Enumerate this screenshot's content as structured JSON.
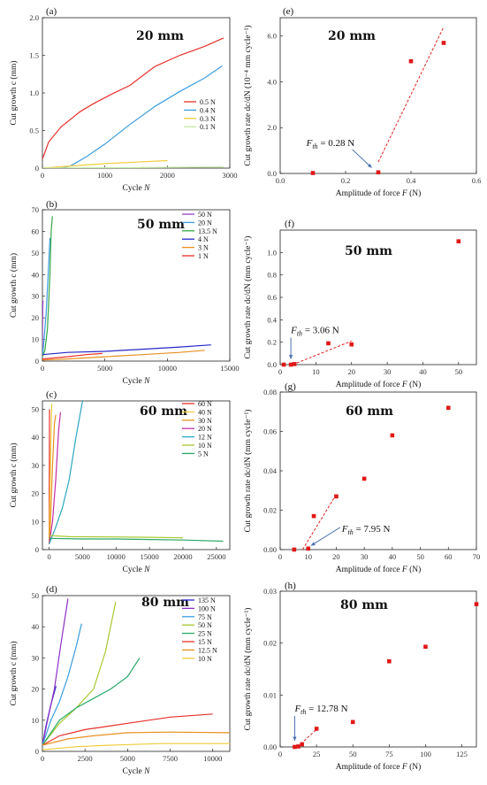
{
  "chart_data": [
    {
      "id": "a",
      "panel_label": "(a)",
      "type": "line",
      "title": "20 mm",
      "xlabel": "Cycle N",
      "ylabel": "Cut growth c (mm)",
      "xlim": [
        0,
        3000
      ],
      "ylim": [
        0,
        2.0
      ],
      "xticks": [
        0,
        1000,
        2000,
        3000
      ],
      "yticks": [
        0,
        0.5,
        1.0,
        1.5,
        2.0
      ],
      "ytick_labels": [
        "0",
        "0.5",
        "1.0",
        "1.5",
        "2.0"
      ],
      "legend": "right",
      "series": [
        {
          "name": "0.5 N",
          "color": "#e8312a",
          "x": [
            0,
            100,
            300,
            600,
            800,
            1100,
            1400,
            1800,
            2200,
            2600,
            2900
          ],
          "y": [
            0.12,
            0.35,
            0.55,
            0.75,
            0.85,
            0.98,
            1.1,
            1.35,
            1.5,
            1.62,
            1.73
          ]
        },
        {
          "name": "0.4 N",
          "color": "#3c9de0",
          "x": [
            0,
            300,
            450,
            700,
            1000,
            1400,
            1800,
            2200,
            2600,
            2880
          ],
          "y": [
            0,
            0,
            0.03,
            0.15,
            0.32,
            0.58,
            0.82,
            1.02,
            1.2,
            1.36
          ]
        },
        {
          "name": "0.3 N",
          "color": "#f0cd3a",
          "x": [
            0,
            500,
            1000,
            1500,
            2000
          ],
          "y": [
            0,
            0.03,
            0.06,
            0.08,
            0.1
          ]
        },
        {
          "name": "0.1 N",
          "color": "#c0e8a0",
          "x": [
            0,
            1000,
            2000,
            2900
          ],
          "y": [
            0,
            0.005,
            0.01,
            0.015
          ]
        }
      ]
    },
    {
      "id": "e",
      "panel_label": "(e)",
      "type": "scatter",
      "title": "20 mm",
      "xlabel": "Amplitude of force F (N)",
      "ylabel": "Cut growth rate dc/dN (10⁻⁴ mm cycle⁻¹)",
      "xlim": [
        0.0,
        0.6
      ],
      "ylim": [
        0,
        6.8
      ],
      "xticks": [
        0.0,
        0.2,
        0.4,
        0.6
      ],
      "xtick_labels": [
        "0.0",
        "0.2",
        "0.4",
        "0.6"
      ],
      "yticks": [
        0,
        2,
        4,
        6
      ],
      "ytick_labels": [
        "0.0",
        "2.0",
        "4.0",
        "6.0"
      ],
      "points": {
        "x": [
          0.1,
          0.3,
          0.4,
          0.5
        ],
        "y": [
          0.02,
          0.05,
          4.9,
          5.7
        ]
      },
      "fit_line": {
        "x": [
          0.3,
          0.5
        ],
        "y": [
          0.5,
          6.4
        ]
      },
      "annotation": {
        "text": "F",
        "sub": "th",
        "value": " = 0.28 N",
        "x": 0.08,
        "y": 1.2,
        "arrow_to": [
          0.28,
          0.25
        ]
      }
    },
    {
      "id": "b",
      "panel_label": "(b)",
      "type": "line",
      "title": "50 mm",
      "xlabel": "Cycle N",
      "ylabel": "Cut growth c (mm)",
      "xlim": [
        0,
        15000
      ],
      "ylim": [
        0,
        70
      ],
      "xticks": [
        0,
        5000,
        10000,
        15000
      ],
      "yticks": [
        0,
        10,
        20,
        30,
        40,
        50,
        60,
        70
      ],
      "legend": "right",
      "series": [
        {
          "name": "50 N",
          "color": "#9c40c8",
          "x": [
            0,
            5,
            10,
            20,
            30,
            40
          ],
          "y": [
            2,
            8,
            14,
            20,
            25,
            28
          ]
        },
        {
          "name": "20 N",
          "color": "#3c9de0",
          "x": [
            0,
            100,
            300,
            500,
            600
          ],
          "y": [
            2,
            8,
            22,
            45,
            57
          ]
        },
        {
          "name": "13.5 N",
          "color": "#33a845",
          "x": [
            0,
            200,
            400,
            600,
            700,
            800
          ],
          "y": [
            2,
            5,
            15,
            40,
            60,
            67
          ]
        },
        {
          "name": "4 N",
          "color": "#2828c8",
          "x": [
            0,
            2000,
            5000,
            8000,
            11000,
            13500
          ],
          "y": [
            3,
            4,
            4.5,
            5.5,
            6.5,
            7.5
          ]
        },
        {
          "name": "3 N",
          "color": "#e89020",
          "x": [
            0,
            2000,
            5000,
            8000,
            11000,
            13000
          ],
          "y": [
            0.5,
            1,
            2,
            3,
            4,
            5
          ]
        },
        {
          "name": "1 N",
          "color": "#e8312a",
          "x": [
            0,
            2000,
            3500,
            4800
          ],
          "y": [
            1,
            2,
            3,
            3.5
          ]
        }
      ]
    },
    {
      "id": "f",
      "panel_label": "(f)",
      "type": "scatter",
      "title": "50 mm",
      "xlabel": "Amplitude of force F (N)",
      "ylabel": "Cut growth rate dc/dN (mm cycle⁻¹)",
      "xlim": [
        0,
        55
      ],
      "ylim": [
        0,
        1.2
      ],
      "xticks": [
        0,
        10,
        20,
        30,
        40,
        50
      ],
      "yticks": [
        0,
        0.2,
        0.4,
        0.6,
        0.8,
        1.0
      ],
      "ytick_labels": [
        "0.0",
        "0.2",
        "0.4",
        "0.6",
        "0.8",
        "1.0"
      ],
      "points": {
        "x": [
          1,
          3,
          4,
          13.5,
          20,
          50
        ],
        "y": [
          0,
          0,
          0.005,
          0.19,
          0.18,
          1.1
        ]
      },
      "fit_line": {
        "x": [
          3.5,
          20
        ],
        "y": [
          0.0,
          0.21
        ]
      },
      "annotation": {
        "text": "F",
        "sub": "th",
        "value": " = 3.06 N",
        "x": 3.0,
        "y": 0.28,
        "arrow_to": [
          3.0,
          0.05
        ]
      }
    },
    {
      "id": "c",
      "panel_label": "(c)",
      "type": "line",
      "title": "60 mm",
      "xlabel": "Cycle N",
      "ylabel": "Cut growth c (mm)",
      "xlim": [
        -1000,
        27000
      ],
      "ylim": [
        0,
        53
      ],
      "xticks": [
        0,
        5000,
        10000,
        15000,
        20000,
        25000
      ],
      "yticks": [
        0,
        10,
        20,
        30,
        40,
        50
      ],
      "legend": "right",
      "series": [
        {
          "name": "60 N",
          "color": "#e8312a",
          "x": [
            0,
            20,
            40,
            60
          ],
          "y": [
            2,
            15,
            35,
            50
          ]
        },
        {
          "name": "40 N",
          "color": "#f0cd3a",
          "x": [
            0,
            100,
            250,
            400
          ],
          "y": [
            2,
            15,
            38,
            52
          ]
        },
        {
          "name": "30 N",
          "color": "#e89020",
          "x": [
            0,
            200,
            500,
            800,
            1000
          ],
          "y": [
            2,
            10,
            30,
            45,
            48
          ]
        },
        {
          "name": "20 N",
          "color": "#c62fa8",
          "x": [
            0,
            500,
            1000,
            1400,
            1700
          ],
          "y": [
            2,
            10,
            25,
            42,
            49
          ]
        },
        {
          "name": "12 N",
          "color": "#2aa8c0",
          "x": [
            0,
            1000,
            2000,
            3000,
            4000,
            5000
          ],
          "y": [
            2,
            8,
            15,
            25,
            40,
            53
          ]
        },
        {
          "name": "10 N",
          "color": "#a8c830",
          "x": [
            0,
            3000,
            10000,
            15000,
            20000
          ],
          "y": [
            5,
            4.6,
            4.5,
            4.4,
            4.2
          ]
        },
        {
          "name": "5 N",
          "color": "#28a868",
          "x": [
            0,
            5000,
            10000,
            15000,
            20000,
            26000
          ],
          "y": [
            4,
            3.8,
            3.8,
            3.6,
            3.4,
            3.0
          ]
        }
      ]
    },
    {
      "id": "g",
      "panel_label": "(g)",
      "type": "scatter",
      "title": "60 mm",
      "xlabel": "Amplitude of force F (N)",
      "ylabel": "Cut growth rate dc/dN (mm cycle⁻¹)",
      "xlim": [
        0,
        70
      ],
      "ylim": [
        0,
        0.08
      ],
      "xticks": [
        0,
        10,
        20,
        30,
        40,
        50,
        60,
        70
      ],
      "yticks": [
        0,
        0.02,
        0.04,
        0.06,
        0.08
      ],
      "ytick_labels": [
        "0.00",
        "0.02",
        "0.04",
        "0.06",
        "0.08"
      ],
      "points": {
        "x": [
          5,
          10,
          12,
          20,
          30,
          40,
          60
        ],
        "y": [
          0,
          0.0005,
          0.017,
          0.027,
          0.036,
          0.058,
          0.072
        ]
      },
      "fit_line": {
        "x": [
          8,
          20
        ],
        "y": [
          0.0,
          0.028
        ]
      },
      "annotation": {
        "text": "F",
        "sub": "th",
        "value": " = 7.95 N",
        "x": 22,
        "y": 0.009,
        "arrow_to": [
          11,
          0.002
        ]
      }
    },
    {
      "id": "d",
      "panel_label": "(d)",
      "type": "line",
      "title": "80 mm",
      "xlabel": "Cycle N",
      "ylabel": "Cut growth c (mm)",
      "xlim": [
        0,
        11000
      ],
      "ylim": [
        0,
        50
      ],
      "xticks": [
        0,
        2500,
        5000,
        7500,
        10000
      ],
      "yticks": [
        0,
        10,
        20,
        30,
        40,
        50
      ],
      "legend": "right",
      "series": [
        {
          "name": "135 N",
          "color": "#2828c8",
          "x": [
            0,
            200,
            500,
            800
          ],
          "y": [
            2,
            8,
            15,
            21
          ]
        },
        {
          "name": "100 N",
          "color": "#8c2fc8",
          "x": [
            0,
            300,
            700,
            1100,
            1500
          ],
          "y": [
            2,
            10,
            20,
            35,
            49
          ]
        },
        {
          "name": "75 N",
          "color": "#3c9de0",
          "x": [
            0,
            500,
            1000,
            1500,
            2000,
            2300
          ],
          "y": [
            2,
            10,
            16,
            24,
            34,
            41
          ]
        },
        {
          "name": "50 N",
          "color": "#a8c830",
          "x": [
            0,
            1000,
            2000,
            3000,
            3700,
            4300
          ],
          "y": [
            2,
            9,
            14,
            20,
            32,
            48
          ]
        },
        {
          "name": "25 N",
          "color": "#28a868",
          "x": [
            0,
            1000,
            2000,
            3000,
            4000,
            5000,
            5700
          ],
          "y": [
            2,
            10,
            14,
            17,
            20,
            24,
            30
          ]
        },
        {
          "name": "15 N",
          "color": "#e8312a",
          "x": [
            0,
            1000,
            2500,
            5000,
            7500,
            10000
          ],
          "y": [
            2,
            5,
            7,
            9,
            11,
            12
          ]
        },
        {
          "name": "12.5 N",
          "color": "#e89020",
          "x": [
            0,
            1500,
            3000,
            5000,
            7500,
            11000
          ],
          "y": [
            2,
            4,
            5,
            6,
            6.2,
            6.0
          ]
        },
        {
          "name": "10 N",
          "color": "#f0cd3a",
          "x": [
            0,
            2000,
            4000,
            7000,
            11000
          ],
          "y": [
            0.5,
            1.5,
            2,
            2.5,
            2.5
          ]
        }
      ]
    },
    {
      "id": "h",
      "panel_label": "(h)",
      "type": "scatter",
      "title": "80 mm",
      "xlabel": "Amplitude of force F (N)",
      "ylabel": "Cut growth rate dc/dN (mm cycle⁻¹)",
      "xlim": [
        0,
        135
      ],
      "ylim": [
        0,
        0.03
      ],
      "xticks": [
        0,
        25,
        50,
        75,
        100,
        125
      ],
      "yticks": [
        0,
        0.01,
        0.02,
        0.03
      ],
      "ytick_labels": [
        "0.00",
        "0.01",
        "0.02",
        "0.03"
      ],
      "points": {
        "x": [
          10,
          12.5,
          15,
          25,
          50,
          75,
          100,
          135
        ],
        "y": [
          0,
          0.0001,
          0.0005,
          0.0035,
          0.0048,
          0.0165,
          0.0193,
          0.0275
        ]
      },
      "fit_line": {
        "x": [
          12,
          25
        ],
        "y": [
          0.0,
          0.0034
        ]
      },
      "annotation": {
        "text": "F",
        "sub": "th",
        "value": " = 12.78 N",
        "x": 10,
        "y": 0.0068,
        "arrow_to": [
          10,
          0.0012
        ]
      }
    }
  ]
}
